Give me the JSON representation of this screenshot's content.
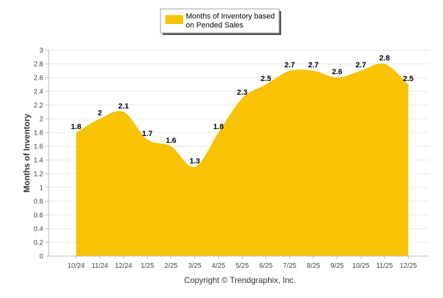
{
  "chart_data": {
    "type": "area",
    "title": "",
    "categories": [
      "10/24",
      "11/24",
      "12/24",
      "1/25",
      "2/25",
      "3/25",
      "4/25",
      "5/25",
      "6/25",
      "7/25",
      "8/25",
      "9/25",
      "10/25",
      "11/25",
      "12/25"
    ],
    "series": [
      {
        "name": "Months of Inventory based on Pended Sales",
        "values": [
          1.8,
          2,
          2.1,
          1.7,
          1.6,
          1.3,
          1.8,
          2.3,
          2.5,
          2.7,
          2.7,
          2.6,
          2.7,
          2.8,
          2.5
        ]
      }
    ],
    "data_labels": [
      "1.8",
      "2",
      "2.1",
      "1.7",
      "1.6",
      "1.3",
      "1.8",
      "2.3",
      "2.5",
      "2.7",
      "2.7",
      "2.6",
      "2.7",
      "2.8",
      "2.5"
    ],
    "ylabel": "Months of Inventory",
    "xlabel": "",
    "ylim": [
      0,
      3
    ],
    "yticks": [
      "0",
      "0.2",
      "0.4",
      "0.6",
      "0.8",
      "1",
      "1.2",
      "1.4",
      "1.6",
      "1.8",
      "2",
      "2.2",
      "2.4",
      "2.6",
      "2.8",
      "3"
    ],
    "legend": {
      "line1": "Months of Inventory based",
      "line2": "on Pended Sales",
      "placement": "top-center"
    },
    "grid": true,
    "colors": {
      "area": "#f7c304",
      "grid": "#e6e6e6",
      "axis": "#bbbbbb"
    }
  },
  "footer": {
    "copyright": "Copyright © Trendgraphix, Inc."
  }
}
